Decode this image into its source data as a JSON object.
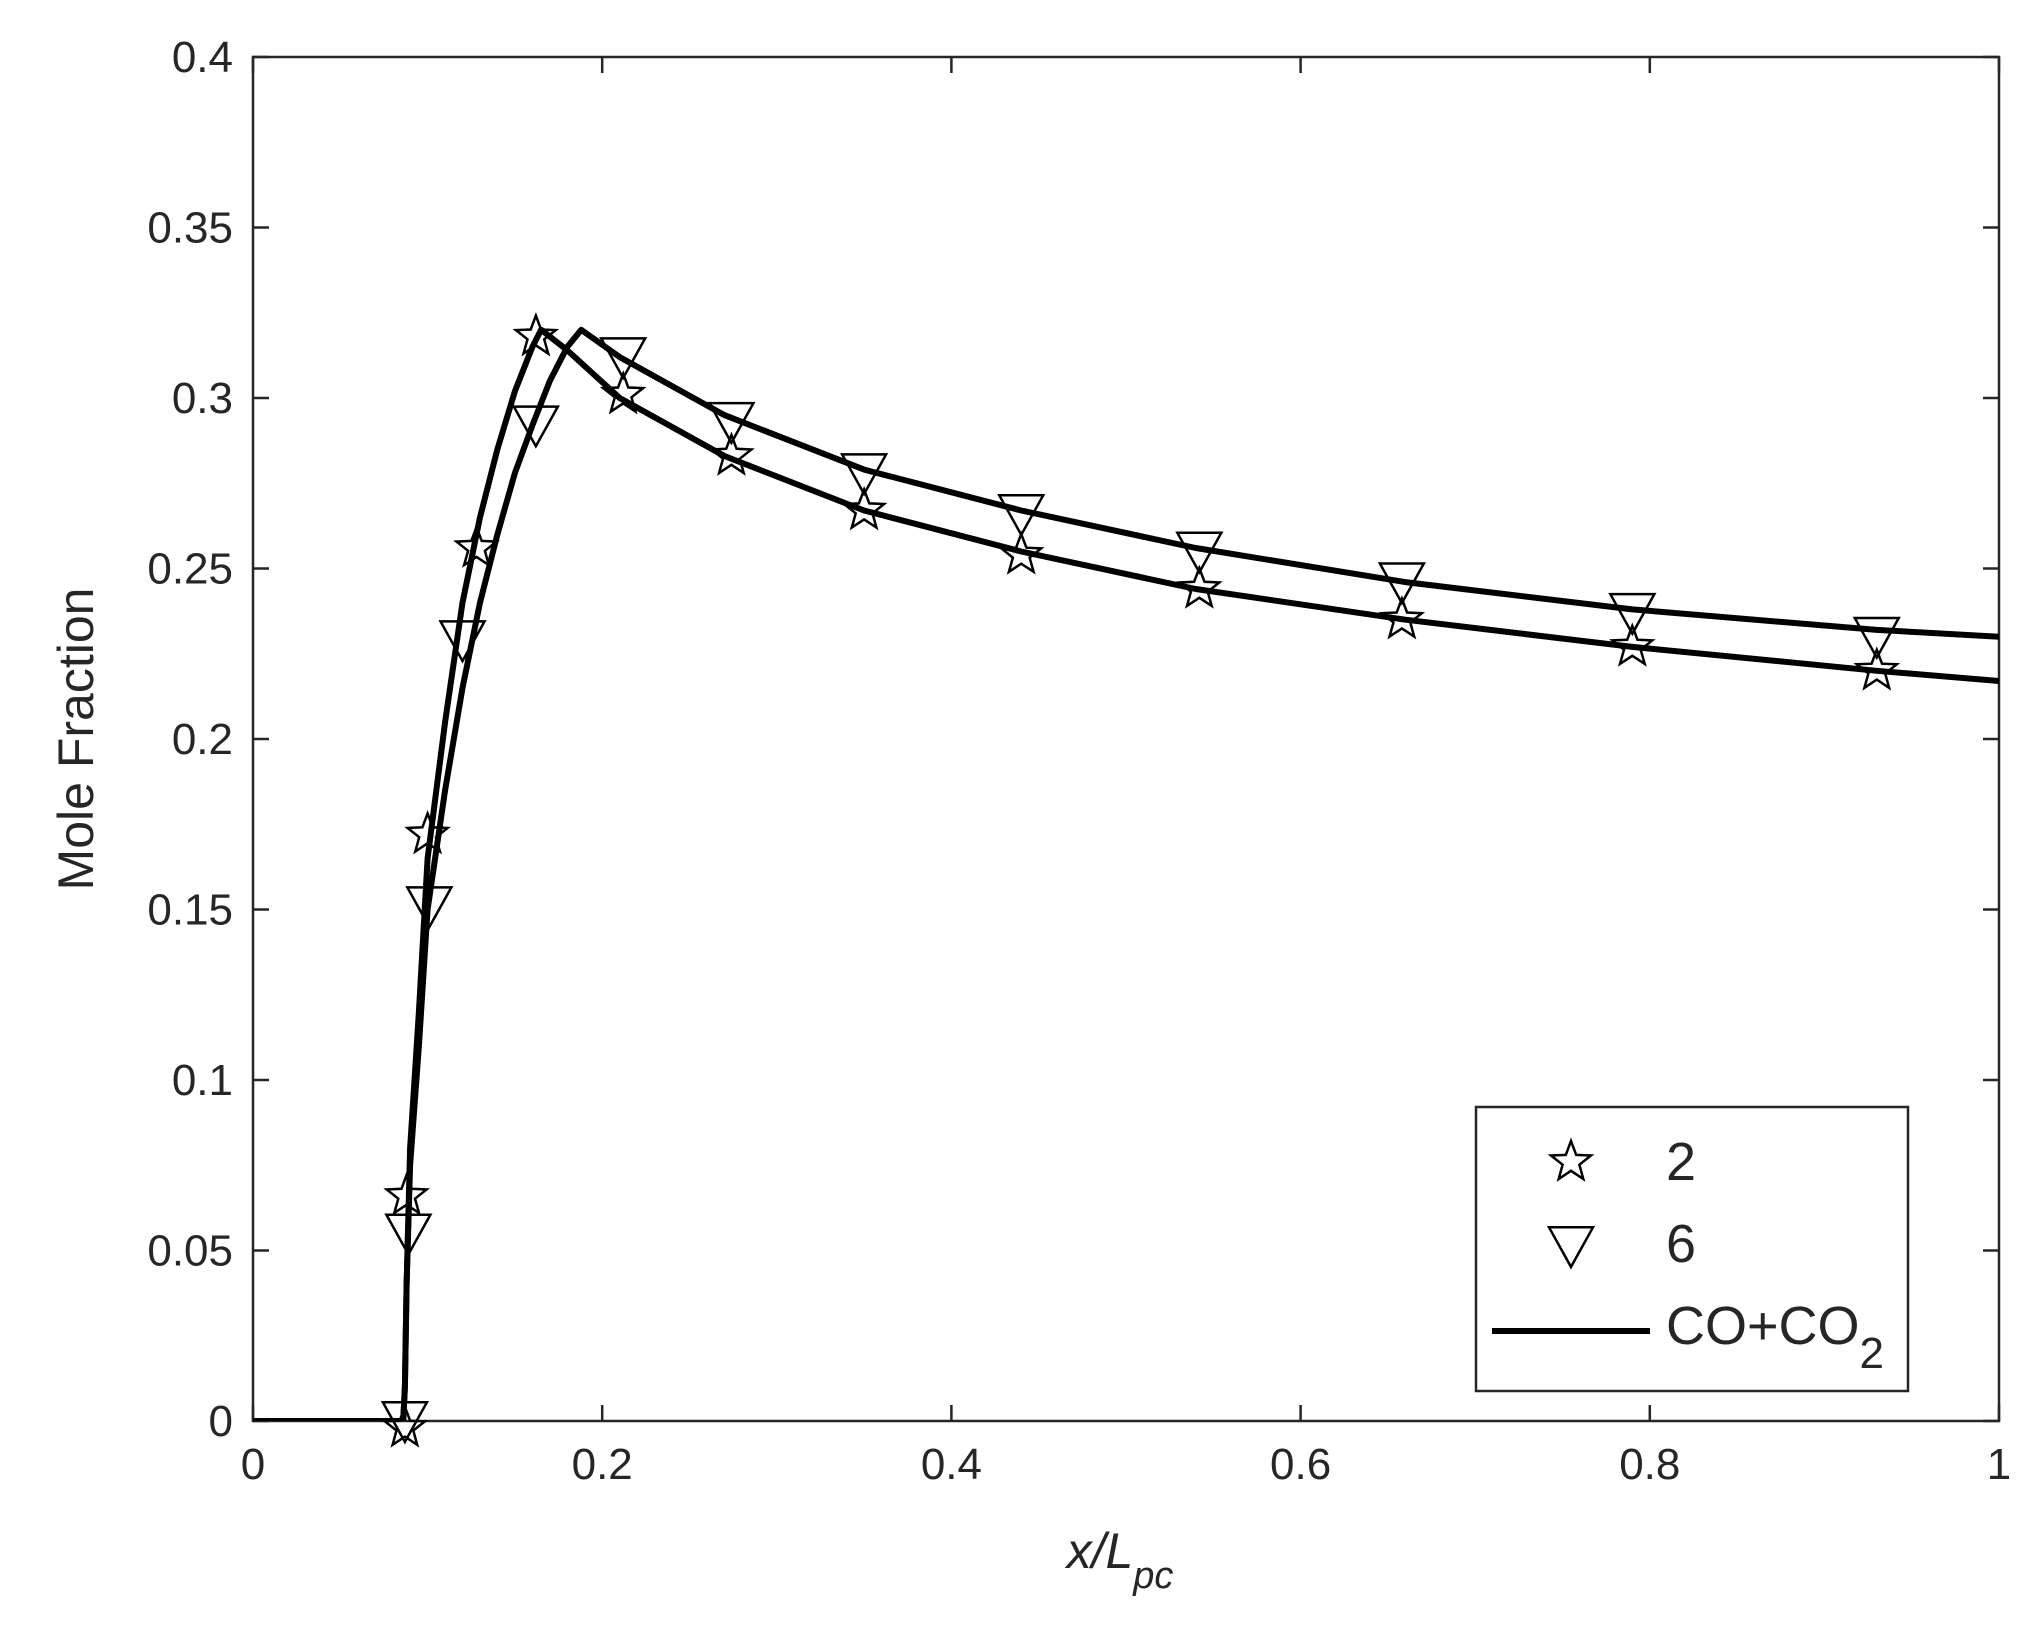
{
  "chart_data": {
    "type": "line",
    "title": "",
    "xlabel": {
      "main": "x/L",
      "sub": "pc"
    },
    "ylabel": "Mole Fraction",
    "xlim": [
      0,
      1
    ],
    "ylim": [
      0,
      0.4
    ],
    "x_ticks": [
      0,
      0.2,
      0.4,
      0.6,
      0.8,
      1
    ],
    "x_tick_labels": [
      "0",
      "0.2",
      "0.4",
      "0.6",
      "0.8",
      "1"
    ],
    "y_ticks": [
      0,
      0.05,
      0.1,
      0.15,
      0.2,
      0.25,
      0.3,
      0.35,
      0.4
    ],
    "y_tick_labels": [
      "0",
      "0.05",
      "0.1",
      "0.15",
      "0.2",
      "0.25",
      "0.3",
      "0.35",
      "0.4"
    ],
    "grid": false,
    "legend_position": "bottom-right",
    "legend": [
      {
        "label": "2",
        "marker": "star"
      },
      {
        "label": "6",
        "marker": "triangle-down"
      },
      {
        "label_main": "CO+CO",
        "label_sub": "2",
        "marker": "line"
      }
    ],
    "lines": [
      {
        "points": [
          [
            0,
            0
          ],
          [
            0.086,
            0
          ],
          [
            0.087,
            0.01
          ],
          [
            0.088,
            0.04
          ],
          [
            0.09,
            0.08
          ],
          [
            0.095,
            0.12
          ],
          [
            0.1,
            0.165
          ],
          [
            0.11,
            0.205
          ],
          [
            0.12,
            0.24
          ],
          [
            0.13,
            0.265
          ],
          [
            0.14,
            0.285
          ],
          [
            0.15,
            0.302
          ],
          [
            0.16,
            0.315
          ],
          [
            0.165,
            0.32
          ],
          [
            0.18,
            0.314
          ],
          [
            0.21,
            0.3
          ],
          [
            0.27,
            0.283
          ],
          [
            0.35,
            0.267
          ],
          [
            0.44,
            0.255
          ],
          [
            0.54,
            0.244
          ],
          [
            0.66,
            0.235
          ],
          [
            0.79,
            0.227
          ],
          [
            0.93,
            0.22
          ],
          [
            1,
            0.217
          ]
        ]
      },
      {
        "points": [
          [
            0,
            0
          ],
          [
            0.086,
            0
          ],
          [
            0.087,
            0.01
          ],
          [
            0.088,
            0.04
          ],
          [
            0.09,
            0.075
          ],
          [
            0.095,
            0.11
          ],
          [
            0.1,
            0.15
          ],
          [
            0.11,
            0.185
          ],
          [
            0.12,
            0.215
          ],
          [
            0.13,
            0.24
          ],
          [
            0.14,
            0.26
          ],
          [
            0.15,
            0.278
          ],
          [
            0.16,
            0.292
          ],
          [
            0.17,
            0.305
          ],
          [
            0.18,
            0.315
          ],
          [
            0.188,
            0.32
          ],
          [
            0.21,
            0.312
          ],
          [
            0.27,
            0.295
          ],
          [
            0.35,
            0.279
          ],
          [
            0.44,
            0.267
          ],
          [
            0.54,
            0.256
          ],
          [
            0.66,
            0.246
          ],
          [
            0.79,
            0.238
          ],
          [
            0.93,
            0.232
          ],
          [
            1,
            0.23
          ]
        ]
      }
    ],
    "series": [
      {
        "name": "2",
        "marker": "star",
        "points": [
          [
            0.087,
            -0.002
          ],
          [
            0.088,
            0.066
          ],
          [
            0.1,
            0.172
          ],
          [
            0.128,
            0.256
          ],
          [
            0.162,
            0.318
          ],
          [
            0.212,
            0.301
          ],
          [
            0.274,
            0.283
          ],
          [
            0.35,
            0.267
          ],
          [
            0.44,
            0.254
          ],
          [
            0.542,
            0.244
          ],
          [
            0.658,
            0.235
          ],
          [
            0.79,
            0.227
          ],
          [
            0.93,
            0.22
          ]
        ]
      },
      {
        "name": "6",
        "marker": "triangle-down",
        "points": [
          [
            0.087,
            0.0
          ],
          [
            0.089,
            0.055
          ],
          [
            0.101,
            0.151
          ],
          [
            0.12,
            0.229
          ],
          [
            0.162,
            0.292
          ],
          [
            0.212,
            0.312
          ],
          [
            0.274,
            0.293
          ],
          [
            0.35,
            0.278
          ],
          [
            0.44,
            0.266
          ],
          [
            0.542,
            0.255
          ],
          [
            0.658,
            0.246
          ],
          [
            0.79,
            0.237
          ],
          [
            0.93,
            0.23
          ]
        ]
      }
    ]
  }
}
